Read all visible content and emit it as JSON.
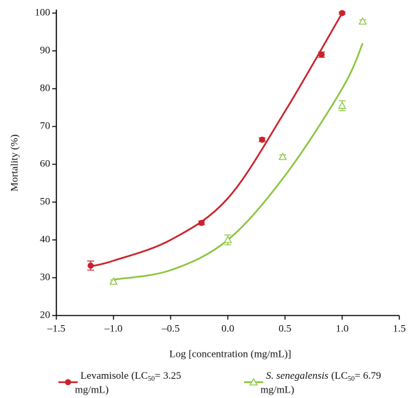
{
  "chart_data": {
    "type": "scatter",
    "xlabel": "Log [concentration (mg/mL)]",
    "ylabel": "Mortality (%)",
    "xlim": [
      -1.5,
      1.5
    ],
    "xticks": [
      {
        "value": -1.5,
        "label": "–1.5"
      },
      {
        "value": -1.0,
        "label": "–1.0"
      },
      {
        "value": -0.5,
        "label": "–0.5"
      },
      {
        "value": 0,
        "label": "0.0"
      },
      {
        "value": 0.5,
        "label": "0.5"
      },
      {
        "value": 1.0,
        "label": "1.0"
      },
      {
        "value": 1.5,
        "label": "1.5"
      }
    ],
    "ylim": [
      20,
      100
    ],
    "yticks": [
      20,
      30,
      40,
      50,
      60,
      70,
      80,
      90,
      100
    ],
    "series": [
      {
        "name": "Levamisole",
        "legend_parts": [
          "(LC",
          "50",
          "= 3.25",
          "mg/mL)"
        ],
        "color": "#c8232c",
        "marker": "circle",
        "x": [
          -1.2,
          -0.23,
          0.3,
          0.82,
          1.0
        ],
        "values": [
          33.2,
          44.5,
          66.5,
          89,
          100
        ],
        "errors": [
          1.2,
          0.5,
          0.5,
          0.7,
          0.3
        ],
        "fit": {
          "x": [
            -1.2,
            -1.0,
            -0.5,
            0,
            0.5,
            1.0
          ],
          "y": [
            33,
            34.5,
            40,
            51,
            74,
            100
          ]
        }
      },
      {
        "name": "S. senegalensis",
        "legend_parts": [
          "(LC",
          "50",
          "= 6.79",
          "mg/mL)"
        ],
        "color": "#8cc63f",
        "marker": "triangle",
        "x": [
          -1.0,
          0.0,
          0.48,
          1.0,
          1.18
        ],
        "values": [
          29,
          40,
          62,
          75.5,
          97.8
        ],
        "errors": [
          0.4,
          1.3,
          0.5,
          1.3,
          0.4
        ],
        "fit": {
          "x": [
            -1.0,
            -0.5,
            0,
            0.5,
            1.0,
            1.18
          ],
          "y": [
            29.5,
            32,
            40,
            57,
            80,
            92
          ]
        }
      }
    ]
  }
}
